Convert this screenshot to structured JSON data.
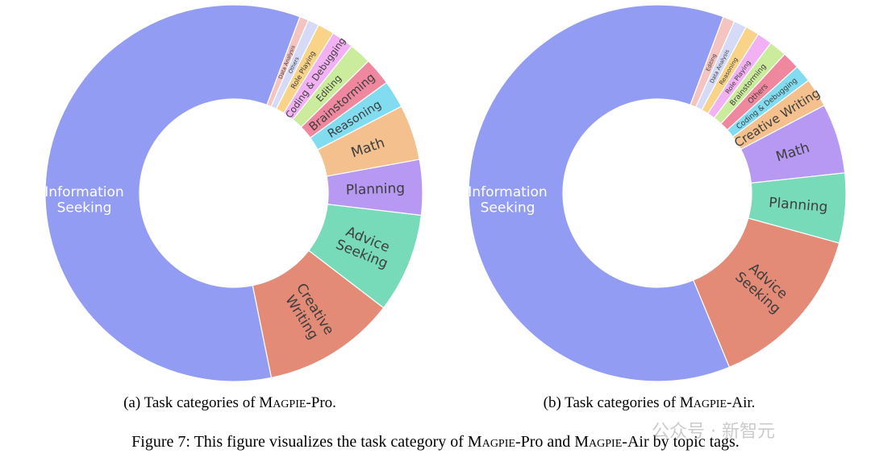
{
  "chart_data": [
    {
      "type": "pie",
      "hole": 0.5,
      "categories": [
        "Information Seeking",
        "Creative Writing",
        "Advice Seeking",
        "Planning",
        "Math",
        "Reasoning",
        "Brainstorming",
        "Editing",
        "Coding & Debugging",
        "Role Playing",
        "Others",
        "Data Analysis"
      ],
      "values": [
        62.0,
        12.0,
        9.0,
        5.0,
        5.0,
        2.5,
        2.5,
        2.0,
        2.0,
        1.5,
        1.0,
        0.8
      ],
      "colors": [
        "#929cf3",
        "#e48b78",
        "#77dbb9",
        "#b798f2",
        "#f3c08e",
        "#82dcf0",
        "#ef889f",
        "#cbeb9d",
        "#f2b1f2",
        "#f9d387",
        "#d5daf7",
        "#f4c4c0"
      ],
      "labels": [
        "Information\nSeeking",
        "Creative\nWriting",
        "Advice\nSeeking",
        "Planning",
        "Math",
        "Reasoning",
        "Brainstorming",
        "Editing",
        "Coding & Debugging",
        "Role Playing",
        "Others",
        "Data Analysis"
      ],
      "caption": "Task categories of Magpie-Pro."
    },
    {
      "type": "pie",
      "hole": 0.5,
      "categories": [
        "Information Seeking",
        "Advice Seeking",
        "Planning",
        "Math",
        "Creative Writing",
        "Coding & Debugging",
        "Others",
        "Brainstorming",
        "Role Playing",
        "Reasoning",
        "Data Analysis",
        "Editing"
      ],
      "values": [
        62.0,
        14.5,
        6.0,
        6.0,
        2.5,
        1.5,
        1.5,
        1.5,
        1.3,
        1.2,
        1.1,
        1.0
      ],
      "colors": [
        "#929cf3",
        "#e48b78",
        "#77dbb9",
        "#b798f2",
        "#f3c08e",
        "#82dcf0",
        "#ef889f",
        "#cbeb9d",
        "#f2b1f2",
        "#f9d387",
        "#d5daf7",
        "#f4c4c0"
      ],
      "labels": [
        "Information\nSeeking",
        "Advice\nSeeking",
        "Planning",
        "Math",
        "Creative Writing",
        "Coding & Debugging",
        "Others",
        "Brainstorming",
        "Role Playing",
        "Reasoning",
        "Data Analysis",
        "Editing"
      ],
      "caption": "Task categories of Magpie-Air."
    }
  ],
  "captions": {
    "a_prefix": "(a) Task categories of M",
    "a_sc": "AGPIE",
    "a_suffix": "-Pro.",
    "b_prefix": "(b) Task categories of M",
    "b_sc": "AGPIE",
    "b_suffix": "-Air.",
    "fig_1": "Figure 7: This figure visualizes the task category of M",
    "fig_sc1": "AGPIE",
    "fig_2": "-Pro and M",
    "fig_sc2": "AGPIE",
    "fig_3": "-Air by topic tags."
  },
  "watermark": "公众号 · 新智元"
}
